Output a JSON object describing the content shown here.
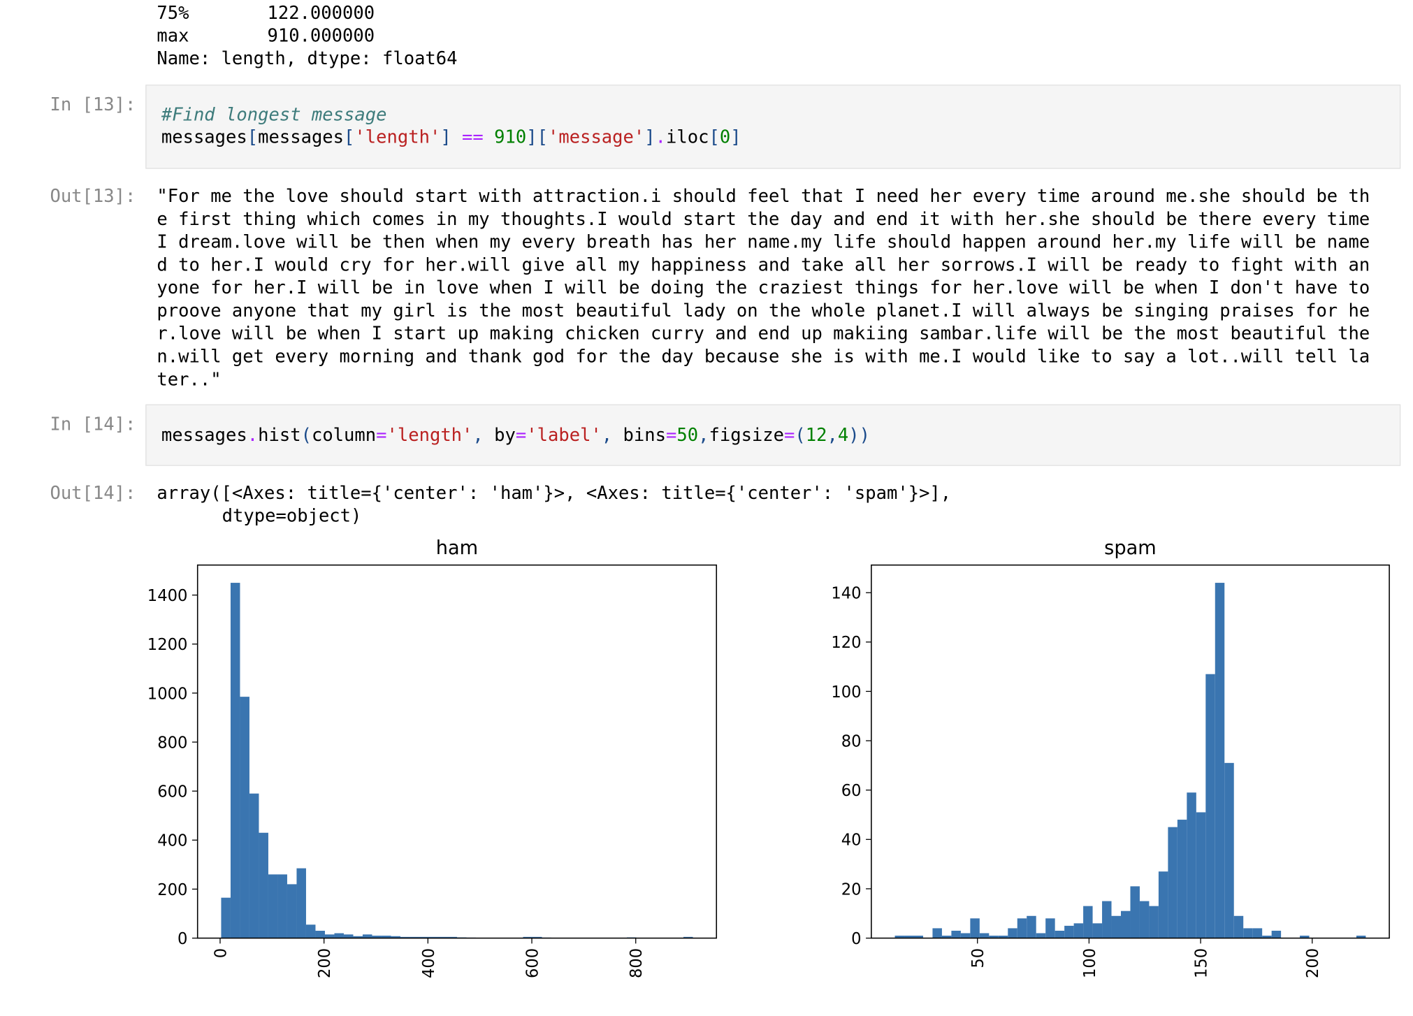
{
  "prev_output": {
    "rows": [
      [
        "75%",
        "122.000000"
      ],
      [
        "max",
        "910.000000"
      ]
    ],
    "footer": "Name: length, dtype: float64"
  },
  "cells": [
    {
      "in_prompt": "In [13]:",
      "code": [
        [
          "#Find longest message"
        ],
        [
          "messages",
          "[",
          "messages",
          "[",
          "'length'",
          "] ",
          "==",
          " 910",
          "]",
          "[",
          "'message'",
          "]",
          ".",
          "iloc",
          "[",
          "0",
          "]"
        ]
      ],
      "out_prompt": "Out[13]:",
      "output": [
        "\"For me the love should start with attraction.i should feel that I need her every time around me.she should be th",
        "e first thing which comes in my thoughts.I would start the day and end it with her.she should be there every time",
        "I dream.love will be then when my every breath has her name.my life should happen around her.my life will be name",
        "d to her.I would cry for her.will give all my happiness and take all her sorrows.I will be ready to fight with an",
        "yone for her.I will be in love when I will be doing the craziest things for her.love will be when I don't have to",
        "proove anyone that my girl is the most beautiful lady on the whole planet.I will always be singing praises for he",
        "r.love will be when I start up making chicken curry and end up makiing sambar.life will be the most beautiful the",
        "n.will get every morning and thank god for the day because she is with me.I would like to say a lot..will tell la",
        "ter..\""
      ]
    },
    {
      "in_prompt": "In [14]:",
      "code": [
        [
          "messages",
          ".",
          "hist",
          "(",
          "column",
          "=",
          "'length'",
          ", ",
          "by",
          "=",
          "'label'",
          ", ",
          "bins",
          "=",
          "50",
          ",",
          "figsize",
          "=",
          "(",
          "12",
          ",",
          "4",
          "))"
        ]
      ],
      "out_prompt": "Out[14]:",
      "output": [
        "array([<Axes: title={'center': 'ham'}>, <Axes: title={'center': 'spam'}>],",
        "dtype=object)"
      ]
    }
  ],
  "chart_data": [
    {
      "type": "histogram",
      "title": "ham",
      "color": "#3a75b0",
      "bins": [
        2,
        20.16,
        38.32,
        56.48,
        74.64,
        92.8,
        110.96,
        129.12,
        147.28,
        165.44,
        183.6,
        201.76,
        219.92,
        238.08,
        256.24,
        274.4,
        292.56,
        310.72,
        328.88,
        347.04,
        365.2,
        383.36,
        401.52,
        419.68,
        437.84,
        456,
        474.16,
        492.32,
        510.48,
        528.64,
        546.8,
        564.96,
        583.12,
        601.28,
        619.44,
        637.6,
        655.76,
        673.92,
        692.08,
        710.24,
        728.4,
        746.56,
        764.72,
        782.88,
        801.04,
        819.2,
        837.36,
        855.52,
        873.68,
        891.84,
        910
      ],
      "values": [
        165,
        1450,
        985,
        590,
        430,
        260,
        260,
        220,
        285,
        55,
        30,
        15,
        20,
        15,
        8,
        15,
        10,
        10,
        8,
        5,
        5,
        5,
        5,
        5,
        5,
        3,
        2,
        1,
        0,
        0,
        0,
        1,
        5,
        5,
        2,
        0,
        0,
        0,
        0,
        0,
        0,
        0,
        0,
        3,
        0,
        0,
        0,
        0,
        0,
        5
      ],
      "xlim": [
        -43.4,
        955.4
      ],
      "ylim": [
        0,
        1522.5
      ],
      "xticks": [
        0,
        200,
        400,
        600,
        800
      ],
      "yticks": [
        0,
        200,
        400,
        600,
        800,
        1000,
        1200,
        1400
      ]
    },
    {
      "type": "histogram",
      "title": "spam",
      "color": "#3a75b0",
      "bins": [
        13,
        17.22,
        21.44,
        25.66,
        29.88,
        34.1,
        38.32,
        42.54,
        46.76,
        50.98,
        55.2,
        59.42,
        63.64,
        67.86,
        72.08,
        76.3,
        80.52,
        84.74,
        88.96,
        93.18,
        97.4,
        101.62,
        105.84,
        110.06,
        114.28,
        118.5,
        122.72,
        126.94,
        131.16,
        135.38,
        139.6,
        143.82,
        148.04,
        152.26,
        156.48,
        160.7,
        164.92,
        169.14,
        173.36,
        177.58,
        181.8,
        186.02,
        190.24,
        194.46,
        198.68,
        202.9,
        207.12,
        211.34,
        215.56,
        219.78,
        224
      ],
      "values": [
        1,
        1,
        1,
        0,
        4,
        1,
        3,
        2,
        8,
        2,
        1,
        1,
        4,
        8,
        9,
        2,
        8,
        3,
        5,
        6,
        13,
        6,
        15,
        9,
        11,
        21,
        15,
        13,
        27,
        45,
        48,
        59,
        51,
        107,
        144,
        71,
        9,
        4,
        4,
        1,
        3,
        0,
        0,
        1,
        0,
        0,
        0,
        0,
        0,
        1
      ],
      "xlim": [
        2.45,
        234.55
      ],
      "ylim": [
        0,
        151.2
      ],
      "xticks": [
        50,
        100,
        150,
        200
      ],
      "yticks": [
        0,
        20,
        40,
        60,
        80,
        100,
        120,
        140
      ]
    }
  ]
}
